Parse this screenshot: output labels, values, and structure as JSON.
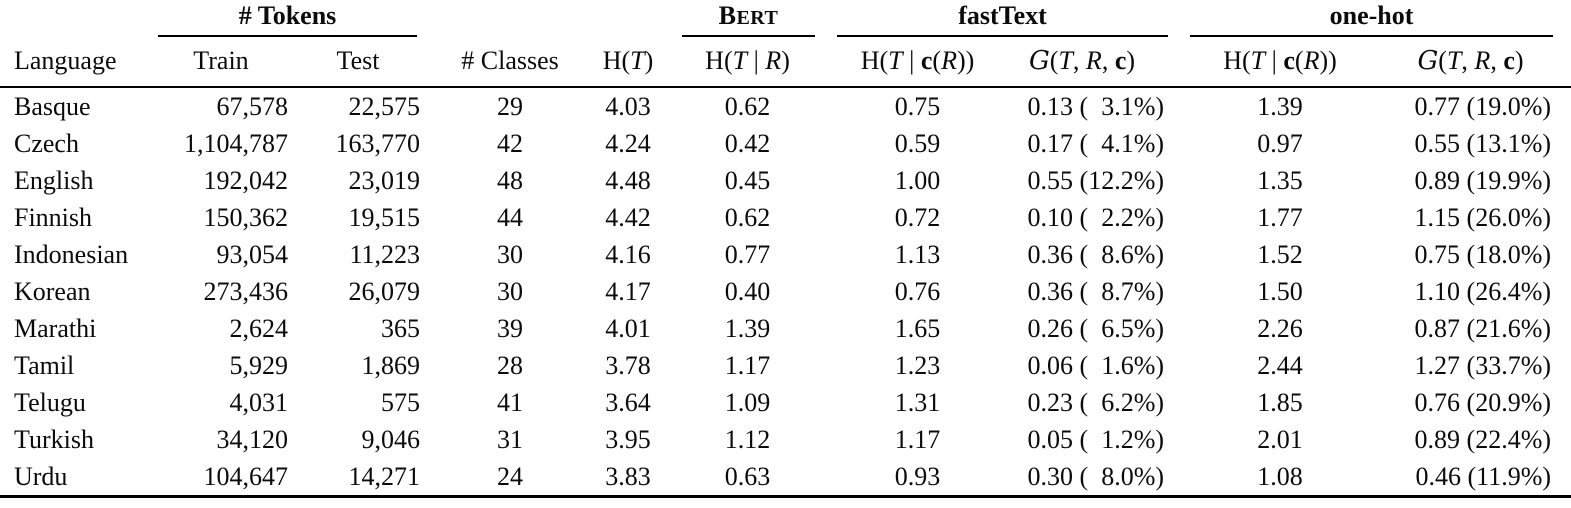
{
  "table": {
    "group_headers": {
      "tokens": "# Tokens",
      "bert": "BERT",
      "fasttext": "fastText",
      "onehot": "one-hot"
    },
    "columns": [
      "Language",
      "Train",
      "Test",
      "# Classes",
      "H(T)",
      "H(T | R)",
      "H(T | c(R))",
      "G(T, R, c)",
      "H(T | c(R))",
      "G(T, R, c)"
    ],
    "rows": [
      [
        "Basque",
        "67,578",
        "22,575",
        "29",
        "4.03",
        "0.62",
        "0.75",
        "0.13 ( 3.1%)",
        "1.39",
        "0.77 (19.0%)"
      ],
      [
        "Czech",
        "1,104,787",
        "163,770",
        "42",
        "4.24",
        "0.42",
        "0.59",
        "0.17 ( 4.1%)",
        "0.97",
        "0.55 (13.1%)"
      ],
      [
        "English",
        "192,042",
        "23,019",
        "48",
        "4.48",
        "0.45",
        "1.00",
        "0.55 (12.2%)",
        "1.35",
        "0.89 (19.9%)"
      ],
      [
        "Finnish",
        "150,362",
        "19,515",
        "44",
        "4.42",
        "0.62",
        "0.72",
        "0.10 ( 2.2%)",
        "1.77",
        "1.15 (26.0%)"
      ],
      [
        "Indonesian",
        "93,054",
        "11,223",
        "30",
        "4.16",
        "0.77",
        "1.13",
        "0.36 ( 8.6%)",
        "1.52",
        "0.75 (18.0%)"
      ],
      [
        "Korean",
        "273,436",
        "26,079",
        "30",
        "4.17",
        "0.40",
        "0.76",
        "0.36 ( 8.7%)",
        "1.50",
        "1.10 (26.4%)"
      ],
      [
        "Marathi",
        "2,624",
        "365",
        "39",
        "4.01",
        "1.39",
        "1.65",
        "0.26 ( 6.5%)",
        "2.26",
        "0.87 (21.6%)"
      ],
      [
        "Tamil",
        "5,929",
        "1,869",
        "28",
        "3.78",
        "1.17",
        "1.23",
        "0.06 ( 1.6%)",
        "2.44",
        "1.27 (33.7%)"
      ],
      [
        "Telugu",
        "4,031",
        "575",
        "41",
        "3.64",
        "1.09",
        "1.31",
        "0.23 ( 6.2%)",
        "1.85",
        "0.76 (20.9%)"
      ],
      [
        "Turkish",
        "34,120",
        "9,046",
        "31",
        "3.95",
        "1.12",
        "1.17",
        "0.05 ( 1.2%)",
        "2.01",
        "0.89 (22.4%)"
      ],
      [
        "Urdu",
        "104,647",
        "14,271",
        "24",
        "3.83",
        "0.63",
        "0.93",
        "0.30 ( 8.0%)",
        "1.08",
        "0.46 (11.9%)"
      ]
    ]
  }
}
